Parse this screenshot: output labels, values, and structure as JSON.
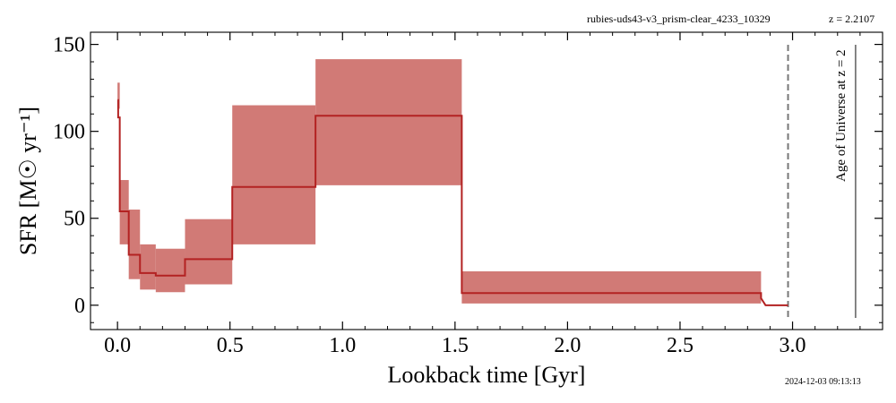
{
  "header": {
    "source": "rubies-uds43-v3_prism-clear_4233_10329",
    "redshift": "z = 2.2107"
  },
  "footer": {
    "timestamp": "2024-12-03 09:13:13"
  },
  "colors": {
    "band": "#d17a76",
    "line": "#b32222",
    "reference": "#777777"
  },
  "chart_data": {
    "type": "area",
    "xlabel": "Lookback time [Gyr]",
    "ylabel": "SFR [M☉ yr⁻¹]",
    "xlim": [
      -0.12,
      3.4
    ],
    "ylim": [
      -14,
      157
    ],
    "xticks": [
      0.0,
      0.5,
      1.0,
      1.5,
      2.0,
      2.5,
      3.0
    ],
    "xtick_labels": [
      "0.0",
      "0.5",
      "1.0",
      "1.5",
      "2.0",
      "2.5",
      "3.0"
    ],
    "yticks": [
      0,
      50,
      100,
      150
    ],
    "ytick_labels": [
      "0",
      "50",
      "100",
      "150"
    ],
    "grid": false,
    "series": [
      {
        "kind": "sfr-median-step",
        "x": [
          0.0,
          0.003,
          0.003,
          0.01,
          0.01,
          0.05,
          0.05,
          0.1,
          0.1,
          0.17,
          0.17,
          0.3,
          0.3,
          0.51,
          0.51,
          0.88,
          0.88,
          1.53,
          1.53,
          2.86,
          2.86,
          2.88,
          2.98
        ],
        "y": [
          118,
          118,
          108,
          108,
          54,
          54,
          29,
          29,
          18.5,
          18.5,
          17,
          17,
          26.5,
          26.5,
          68,
          68,
          109,
          109,
          7,
          7,
          4,
          0,
          0
        ]
      },
      {
        "kind": "sfr-credible-band",
        "bins": [
          {
            "x0": 0.0,
            "x1": 0.01,
            "low": 113,
            "high": 128
          },
          {
            "x0": 0.01,
            "x1": 0.05,
            "low": 35,
            "high": 72
          },
          {
            "x0": 0.05,
            "x1": 0.1,
            "low": 15,
            "high": 55
          },
          {
            "x0": 0.1,
            "x1": 0.17,
            "low": 9,
            "high": 35
          },
          {
            "x0": 0.17,
            "x1": 0.3,
            "low": 7.5,
            "high": 32.5
          },
          {
            "x0": 0.3,
            "x1": 0.51,
            "low": 12,
            "high": 49.5
          },
          {
            "x0": 0.51,
            "x1": 0.88,
            "low": 35,
            "high": 115
          },
          {
            "x0": 0.88,
            "x1": 1.53,
            "low": 69,
            "high": 141.5
          },
          {
            "x0": 1.53,
            "x1": 2.86,
            "low": 1,
            "high": 19.5
          }
        ]
      }
    ],
    "reference_lines": [
      {
        "kind": "dashed-vertical",
        "x": 2.98
      },
      {
        "kind": "solid-vertical",
        "x": 3.28,
        "label": "Age of Universe at z = 2"
      }
    ]
  }
}
